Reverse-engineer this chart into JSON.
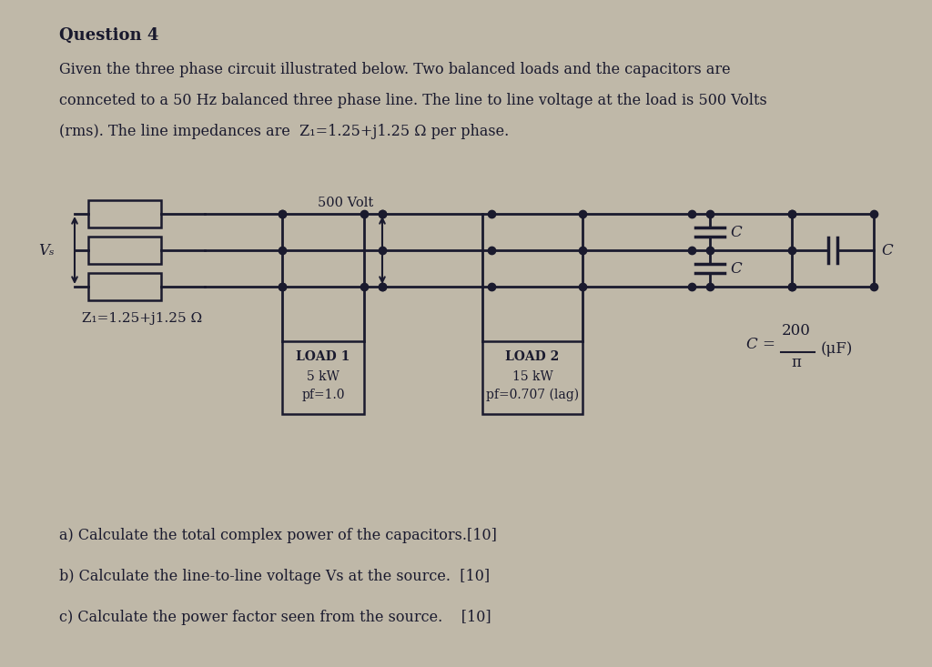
{
  "title": "Question 4",
  "para1": "Given the three phase circuit illustrated below. Two balanced loads and the capacitors are",
  "para2": "connceted to a 50 Hz balanced three phase line. The line to line voltage at the load is 500 Volts",
  "para3": "(rms). The line impedances are  Z₁=1.25+j1.25 Ω per phase.",
  "impedance_label": "Z₁=1.25+j1.25 Ω",
  "volt_label": "500 Volt",
  "vs_label": "Vₛ",
  "cap_num": "200",
  "cap_denom": "π",
  "load1_line1": "LOAD 1",
  "load1_line2": "5 kW",
  "load1_line3": "pf=1.0",
  "load2_line1": "LOAD 2",
  "load2_line2": "15 kW",
  "load2_line3": "pf=0.707 (lag)",
  "qa": "a) Calculate the total complex power of the capacitors.[10]",
  "qb": "b) Calculate the line-to-line voltage Vs at the source.  [10]",
  "qc": "c) Calculate the power factor seen from the source.    [10]",
  "bg_color": "#bfb8a8",
  "text_color": "#1a1a2e",
  "line_color": "#1a1a2e"
}
